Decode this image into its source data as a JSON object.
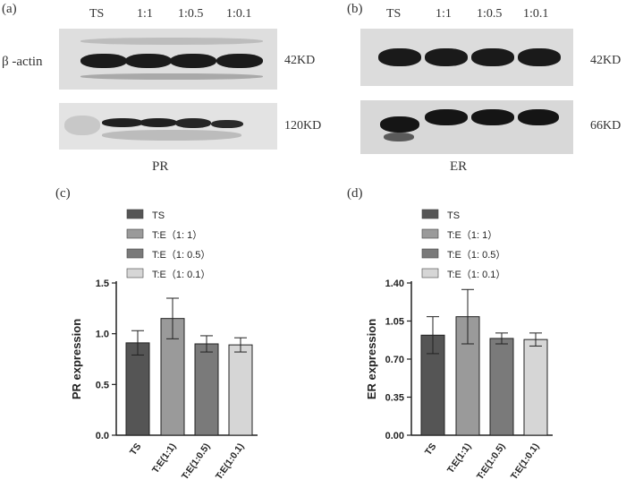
{
  "panel_a": {
    "label": "(a)",
    "lanes": [
      "TS",
      "1:1",
      "1:0.5",
      "1:0.1"
    ],
    "row_label": "β -actin",
    "size_top": "42KD",
    "size_bottom": "120KD",
    "caption": "PR"
  },
  "panel_b": {
    "label": "(b)",
    "lanes": [
      "TS",
      "1:1",
      "1:0.5",
      "1:0.1"
    ],
    "size_top": "42KD",
    "size_bottom": "66KD",
    "caption": "ER"
  },
  "colors": {
    "TS": "#555555",
    "T:E(1:1)": "#9a9a9a",
    "T:E(1:0.5)": "#7a7a7a",
    "T:E(1:0.1)": "#d6d6d6"
  },
  "chart_data": [
    {
      "panel": "(c)",
      "type": "bar",
      "categories": [
        "TS",
        "T:E(1:1)",
        "T:E(1:0.5)",
        "T:E(1:0.1)"
      ],
      "legend": [
        "TS",
        "T:E（1: 1）",
        "T:E（1: 0.5）",
        "T:E（1: 0.1）"
      ],
      "values": [
        0.91,
        1.15,
        0.9,
        0.89
      ],
      "errors": [
        0.12,
        0.2,
        0.08,
        0.07
      ],
      "ylabel": "PR expression",
      "ylim": [
        0,
        1.5
      ],
      "yticks": [
        0.0,
        0.5,
        1.0,
        1.5
      ],
      "ytick_labels": [
        "0.0",
        "0.5",
        "1.0",
        "1.5"
      ],
      "legend_position": "top"
    },
    {
      "panel": "(d)",
      "type": "bar",
      "categories": [
        "TS",
        "T:E(1:1)",
        "T:E(1:0.5)",
        "T:E(1:0.1)"
      ],
      "legend": [
        "TS",
        "T:E（1: 1）",
        "T:E（1: 0.5）",
        "T:E（1: 0.1）"
      ],
      "values": [
        0.92,
        1.09,
        0.89,
        0.88
      ],
      "errors": [
        0.17,
        0.25,
        0.05,
        0.06
      ],
      "ylabel": "ER expression",
      "ylim": [
        0,
        1.4
      ],
      "yticks": [
        0.0,
        0.35,
        0.7,
        1.05,
        1.4
      ],
      "ytick_labels": [
        "0.00",
        "0.35",
        "0.70",
        "1.05",
        "1.40"
      ],
      "legend_position": "top"
    }
  ]
}
